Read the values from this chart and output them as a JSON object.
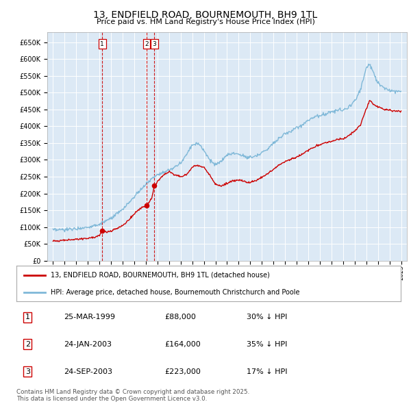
{
  "title": "13, ENDFIELD ROAD, BOURNEMOUTH, BH9 1TL",
  "subtitle": "Price paid vs. HM Land Registry's House Price Index (HPI)",
  "plot_bg_color": "#dce9f5",
  "grid_color": "#ffffff",
  "red_color": "#cc0000",
  "blue_color": "#7fb8d8",
  "transactions": [
    {
      "num": 1,
      "date_label": "25-MAR-1999",
      "price": 88000,
      "pct": "30%",
      "direction": "↓",
      "year_x": 1999.23
    },
    {
      "num": 2,
      "date_label": "24-JAN-2003",
      "price": 164000,
      "pct": "35%",
      "direction": "↓",
      "year_x": 2003.07
    },
    {
      "num": 3,
      "date_label": "24-SEP-2003",
      "price": 223000,
      "pct": "17%",
      "direction": "↓",
      "year_x": 2003.73
    }
  ],
  "transaction_prices": [
    88000,
    164000,
    223000
  ],
  "ylim": [
    0,
    680000
  ],
  "yticks": [
    0,
    50000,
    100000,
    150000,
    200000,
    250000,
    300000,
    350000,
    400000,
    450000,
    500000,
    550000,
    600000,
    650000
  ],
  "xlim_start": 1994.5,
  "xlim_end": 2025.5,
  "legend_line1": "13, ENDFIELD ROAD, BOURNEMOUTH, BH9 1TL (detached house)",
  "legend_line2": "HPI: Average price, detached house, Bournemouth Christchurch and Poole",
  "table_data": [
    [
      "1",
      "25-MAR-1999",
      "£88,000",
      "30% ↓ HPI"
    ],
    [
      "2",
      "24-JAN-2003",
      "£164,000",
      "35% ↓ HPI"
    ],
    [
      "3",
      "24-SEP-2003",
      "£223,000",
      "17% ↓ HPI"
    ]
  ],
  "footer": "Contains HM Land Registry data © Crown copyright and database right 2025.\nThis data is licensed under the Open Government Licence v3.0.",
  "hpi_anchors": [
    [
      1995.0,
      90000
    ],
    [
      1996.0,
      92000
    ],
    [
      1997.0,
      95000
    ],
    [
      1998.0,
      100000
    ],
    [
      1999.0,
      108000
    ],
    [
      2000.0,
      125000
    ],
    [
      2001.0,
      152000
    ],
    [
      2002.0,
      190000
    ],
    [
      2003.0,
      228000
    ],
    [
      2004.0,
      258000
    ],
    [
      2005.0,
      268000
    ],
    [
      2006.0,
      290000
    ],
    [
      2007.0,
      345000
    ],
    [
      2007.5,
      350000
    ],
    [
      2008.0,
      330000
    ],
    [
      2008.5,
      300000
    ],
    [
      2009.0,
      285000
    ],
    [
      2009.5,
      295000
    ],
    [
      2010.0,
      315000
    ],
    [
      2010.5,
      320000
    ],
    [
      2011.0,
      318000
    ],
    [
      2011.5,
      310000
    ],
    [
      2012.0,
      308000
    ],
    [
      2012.5,
      312000
    ],
    [
      2013.0,
      322000
    ],
    [
      2013.5,
      332000
    ],
    [
      2014.0,
      352000
    ],
    [
      2014.5,
      365000
    ],
    [
      2015.0,
      378000
    ],
    [
      2015.5,
      385000
    ],
    [
      2016.0,
      395000
    ],
    [
      2016.5,
      405000
    ],
    [
      2017.0,
      418000
    ],
    [
      2017.5,
      428000
    ],
    [
      2018.0,
      432000
    ],
    [
      2018.5,
      438000
    ],
    [
      2019.0,
      442000
    ],
    [
      2019.5,
      448000
    ],
    [
      2020.0,
      448000
    ],
    [
      2020.5,
      458000
    ],
    [
      2021.0,
      475000
    ],
    [
      2021.5,
      510000
    ],
    [
      2022.0,
      575000
    ],
    [
      2022.3,
      585000
    ],
    [
      2022.5,
      570000
    ],
    [
      2022.8,
      545000
    ],
    [
      2023.0,
      530000
    ],
    [
      2023.5,
      515000
    ],
    [
      2024.0,
      508000
    ],
    [
      2024.5,
      505000
    ],
    [
      2025.0,
      505000
    ]
  ],
  "red_anchors": [
    [
      1995.0,
      60000
    ],
    [
      1995.5,
      59000
    ],
    [
      1996.0,
      61000
    ],
    [
      1996.5,
      62000
    ],
    [
      1997.0,
      63000
    ],
    [
      1997.5,
      65000
    ],
    [
      1998.0,
      67000
    ],
    [
      1998.5,
      70000
    ],
    [
      1999.0,
      74000
    ],
    [
      1999.23,
      88000
    ],
    [
      1999.5,
      85000
    ],
    [
      2000.0,
      88000
    ],
    [
      2000.5,
      95000
    ],
    [
      2001.0,
      105000
    ],
    [
      2001.5,
      120000
    ],
    [
      2002.0,
      140000
    ],
    [
      2002.5,
      155000
    ],
    [
      2003.0,
      163000
    ],
    [
      2003.07,
      164000
    ],
    [
      2003.5,
      185000
    ],
    [
      2003.73,
      223000
    ],
    [
      2004.0,
      235000
    ],
    [
      2004.5,
      255000
    ],
    [
      2005.0,
      265000
    ],
    [
      2005.5,
      255000
    ],
    [
      2006.0,
      250000
    ],
    [
      2006.5,
      255000
    ],
    [
      2007.0,
      278000
    ],
    [
      2007.5,
      285000
    ],
    [
      2008.0,
      278000
    ],
    [
      2008.5,
      255000
    ],
    [
      2009.0,
      228000
    ],
    [
      2009.5,
      222000
    ],
    [
      2010.0,
      230000
    ],
    [
      2010.5,
      238000
    ],
    [
      2011.0,
      240000
    ],
    [
      2011.5,
      235000
    ],
    [
      2012.0,
      232000
    ],
    [
      2012.5,
      238000
    ],
    [
      2013.0,
      248000
    ],
    [
      2013.5,
      258000
    ],
    [
      2014.0,
      272000
    ],
    [
      2014.5,
      285000
    ],
    [
      2015.0,
      295000
    ],
    [
      2015.5,
      302000
    ],
    [
      2016.0,
      308000
    ],
    [
      2016.5,
      318000
    ],
    [
      2017.0,
      328000
    ],
    [
      2017.5,
      338000
    ],
    [
      2018.0,
      345000
    ],
    [
      2018.5,
      352000
    ],
    [
      2019.0,
      355000
    ],
    [
      2019.5,
      362000
    ],
    [
      2020.0,
      362000
    ],
    [
      2020.5,
      372000
    ],
    [
      2021.0,
      385000
    ],
    [
      2021.5,
      405000
    ],
    [
      2022.0,
      452000
    ],
    [
      2022.3,
      478000
    ],
    [
      2022.5,
      470000
    ],
    [
      2022.8,
      460000
    ],
    [
      2023.0,
      458000
    ],
    [
      2023.5,
      450000
    ],
    [
      2024.0,
      448000
    ],
    [
      2024.5,
      445000
    ],
    [
      2025.0,
      445000
    ]
  ]
}
